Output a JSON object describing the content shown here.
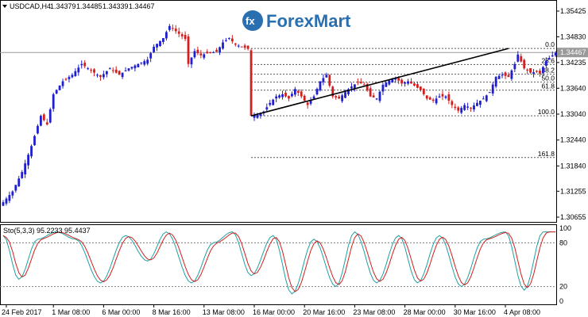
{
  "window": {
    "symbol_label": "USDCAD,H4",
    "ohlc": [
      "1.34379",
      "1.34485",
      "1.34339",
      "1.34467"
    ]
  },
  "logo": {
    "text": "ForexMart",
    "icon": "fx-logo-icon"
  },
  "chart_data": [
    {
      "type": "candlestick",
      "title": "USDCAD,H4",
      "ylim": [
        1.30655,
        1.35425
      ],
      "ytick_labels": [
        "1.35425",
        "1.34830",
        "1.34467",
        "1.34235",
        "1.33640",
        "1.33040",
        "1.32440",
        "1.31840",
        "1.31255",
        "1.30655"
      ],
      "current_price": "1.34467",
      "xtick_labels": [
        "24 Feb 2017",
        "1 Mar 08:00",
        "6 Mar 00:00",
        "8 Mar 16:00",
        "13 Mar 08:00",
        "16 Mar 00:00",
        "20 Mar 16:00",
        "23 Mar 08:00",
        "28 Mar 00:00",
        "30 Mar 16:00",
        "4 Apr 08:00"
      ],
      "x_index_per_tick": [
        1,
        16,
        32,
        48,
        64,
        80,
        96,
        112,
        128,
        144,
        160
      ],
      "close_path": [
        [
          0,
          1.31
        ],
        [
          3,
          1.3125
        ],
        [
          6,
          1.317
        ],
        [
          9,
          1.323
        ],
        [
          12,
          1.33
        ],
        [
          14,
          1.328
        ],
        [
          16,
          1.335
        ],
        [
          19,
          1.338
        ],
        [
          22,
          1.3395
        ],
        [
          25,
          1.342
        ],
        [
          28,
          1.3405
        ],
        [
          31,
          1.339
        ],
        [
          34,
          1.341
        ],
        [
          37,
          1.3395
        ],
        [
          40,
          1.341
        ],
        [
          43,
          1.342
        ],
        [
          46,
          1.343
        ],
        [
          48,
          1.346
        ],
        [
          51,
          1.348
        ],
        [
          53,
          1.3508
        ],
        [
          56,
          1.349
        ],
        [
          58,
          1.3478
        ],
        [
          59,
          1.342
        ],
        [
          61,
          1.345
        ],
        [
          63,
          1.344
        ],
        [
          65,
          1.3445
        ],
        [
          68,
          1.3448
        ],
        [
          70,
          1.347
        ],
        [
          72,
          1.348
        ],
        [
          74,
          1.3465
        ],
        [
          76,
          1.346
        ],
        [
          78,
          1.3455
        ],
        [
          79,
          1.33
        ],
        [
          81,
          1.3302
        ],
        [
          83,
          1.331
        ],
        [
          85,
          1.333
        ],
        [
          87,
          1.3345
        ],
        [
          89,
          1.335
        ],
        [
          91,
          1.334
        ],
        [
          93,
          1.3362
        ],
        [
          95,
          1.3345
        ],
        [
          97,
          1.3325
        ],
        [
          99,
          1.3345
        ],
        [
          101,
          1.338
        ],
        [
          103,
          1.3395
        ],
        [
          105,
          1.3345
        ],
        [
          107,
          1.334
        ],
        [
          109,
          1.3355
        ],
        [
          111,
          1.3368
        ],
        [
          113,
          1.3378
        ],
        [
          115,
          1.3372
        ],
        [
          117,
          1.3345
        ],
        [
          119,
          1.334
        ],
        [
          121,
          1.3372
        ],
        [
          123,
          1.3382
        ],
        [
          125,
          1.3388
        ],
        [
          127,
          1.3375
        ],
        [
          129,
          1.338
        ],
        [
          131,
          1.337
        ],
        [
          133,
          1.336
        ],
        [
          135,
          1.334
        ],
        [
          137,
          1.3335
        ],
        [
          139,
          1.3345
        ],
        [
          141,
          1.3345
        ],
        [
          143,
          1.3325
        ],
        [
          145,
          1.3312
        ],
        [
          147,
          1.3325
        ],
        [
          149,
          1.3318
        ],
        [
          151,
          1.333
        ],
        [
          153,
          1.334
        ],
        [
          155,
          1.3355
        ],
        [
          157,
          1.339
        ],
        [
          159,
          1.3395
        ],
        [
          161,
          1.339
        ],
        [
          163,
          1.342
        ],
        [
          164,
          1.3442
        ],
        [
          166,
          1.341
        ],
        [
          168,
          1.34
        ],
        [
          170,
          1.3402
        ],
        [
          171,
          1.3398
        ],
        [
          173,
          1.3428
        ],
        [
          175,
          1.344
        ],
        [
          176,
          1.3446
        ]
      ],
      "trendline": {
        "from": [
          79,
          1.33
        ],
        "to": [
          161,
          1.3456
        ]
      },
      "fibonacci": {
        "start_index": 79,
        "levels": [
          {
            "label": "0.0",
            "price": 1.3456
          },
          {
            "label": "23.6",
            "price": 1.3419
          },
          {
            "label": "38.2",
            "price": 1.33965
          },
          {
            "label": "50.0",
            "price": 1.3378
          },
          {
            "label": "61.8",
            "price": 1.33595
          },
          {
            "label": "100.0",
            "price": 1.33
          },
          {
            "label": "161.8",
            "price": 1.32035
          }
        ]
      },
      "colors": {
        "bull": "#1f1fd1",
        "bear": "#d11f1f",
        "line": "#000000",
        "fib": "#555555",
        "price_line": "#9a9a9a"
      }
    },
    {
      "type": "line",
      "title": "Sto(5,3,3) 95.2233 95.4437",
      "label": "Sto(5,3,3)",
      "main_value": "95.2233",
      "signal_value": "95.4437",
      "ylim": [
        0,
        100
      ],
      "ytick_labels": [
        "100",
        "80",
        "20",
        "0"
      ],
      "levels": [
        80,
        20
      ],
      "main_cycle_phase": [
        0,
        5,
        11,
        17,
        23,
        31,
        39,
        46,
        52,
        60,
        67,
        73,
        79,
        86,
        92,
        99,
        106,
        112,
        119,
        126,
        132,
        139,
        146,
        153,
        160,
        166,
        172
      ],
      "main_values": [
        90,
        30,
        85,
        95,
        85,
        25,
        90,
        55,
        95,
        25,
        80,
        95,
        35,
        90,
        10,
        85,
        20,
        95,
        25,
        90,
        25,
        90,
        20,
        85,
        95,
        15,
        95
      ],
      "colors": {
        "main": "#20a0a0",
        "signal": "#d11f1f",
        "level": "#808080"
      }
    }
  ]
}
